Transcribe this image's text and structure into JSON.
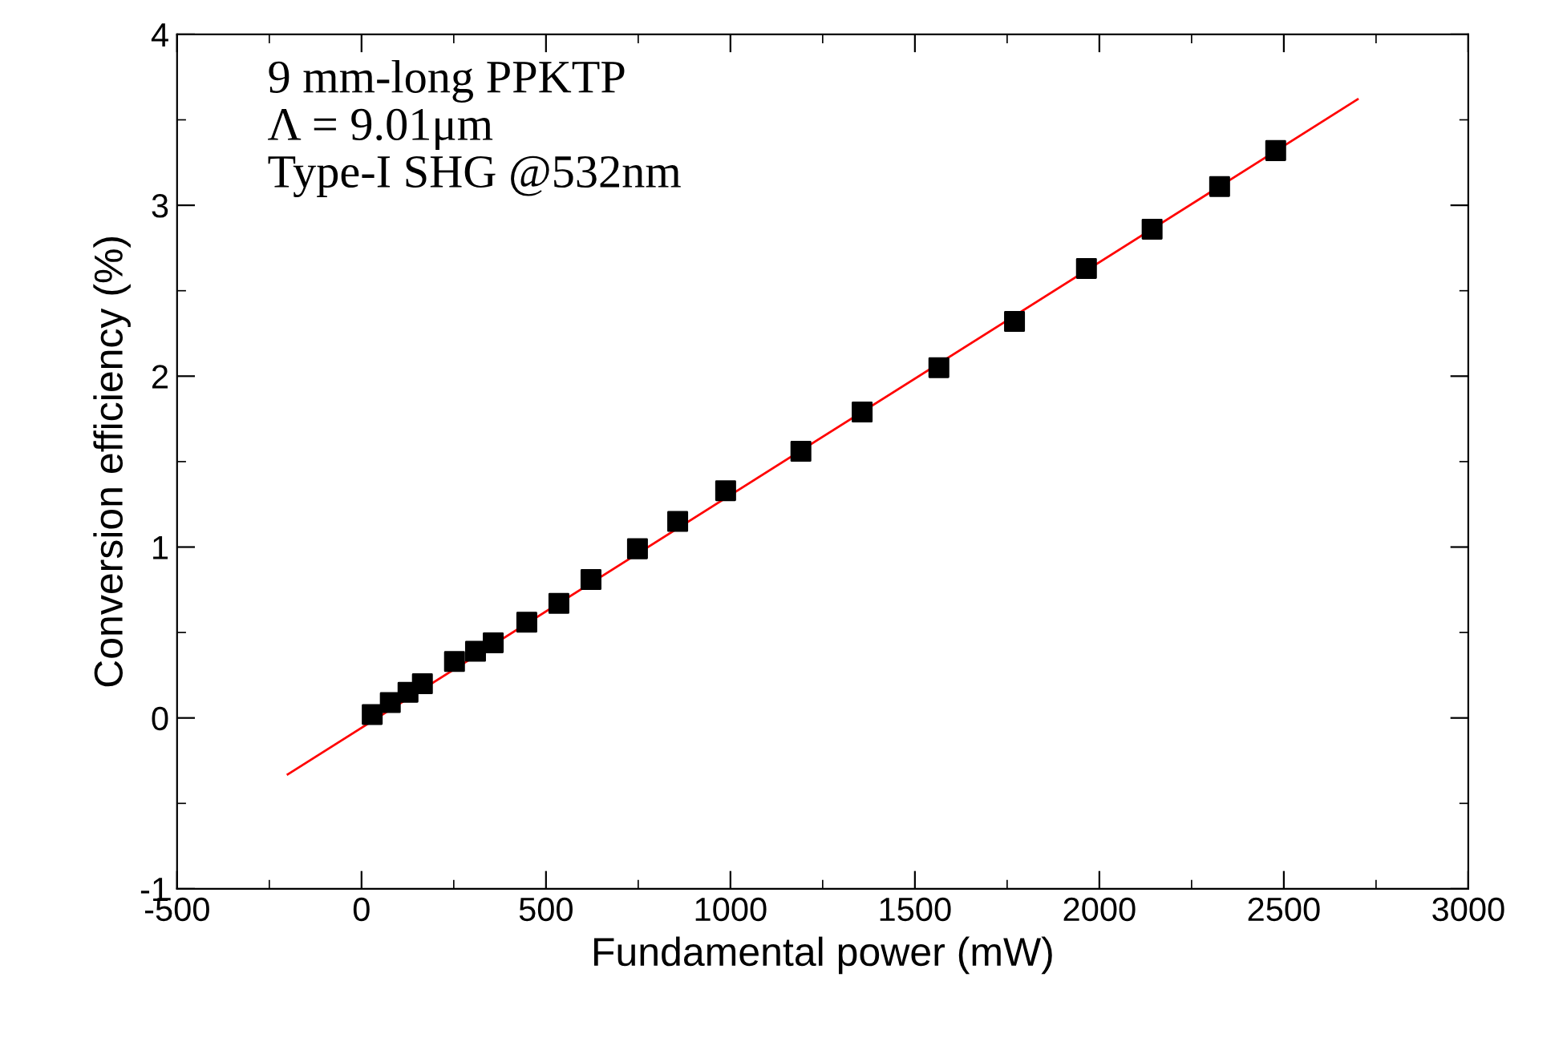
{
  "chart_data": {
    "type": "scatter",
    "xlabel": "Fundamental power (mW)",
    "ylabel": "Conversion efficiency (%)",
    "annotations": [
      "9 mm-long PPKTP\nΛ = 9.01μm\nType-I SHG @532nm"
    ],
    "xlim": [
      -500,
      3000
    ],
    "xticks": [
      -500,
      0,
      500,
      1000,
      1500,
      2000,
      2500,
      3000
    ],
    "ylim": [
      -1,
      4
    ],
    "yticks": [
      -1,
      0,
      1,
      2,
      3,
      4
    ],
    "grid": false,
    "legend": false,
    "series": [
      {
        "marker": "square",
        "color": "#000000",
        "x": [
          29,
          78,
          126,
          165,
          252,
          309,
          357,
          448,
          535,
          622,
          748,
          857,
          987,
          1191,
          1357,
          1565,
          1770,
          1965,
          2143,
          2326,
          2478
        ],
        "values": [
          0.02,
          0.09,
          0.15,
          0.2,
          0.33,
          0.39,
          0.44,
          0.56,
          0.67,
          0.81,
          0.99,
          1.15,
          1.33,
          1.56,
          1.79,
          2.05,
          2.32,
          2.63,
          2.86,
          3.11,
          3.32
        ]
      },
      {
        "type": "line",
        "marker": "none",
        "color": "#ff0000",
        "x": [
          -200,
          2700
        ],
        "values": [
          -0.33,
          3.62
        ]
      }
    ]
  }
}
